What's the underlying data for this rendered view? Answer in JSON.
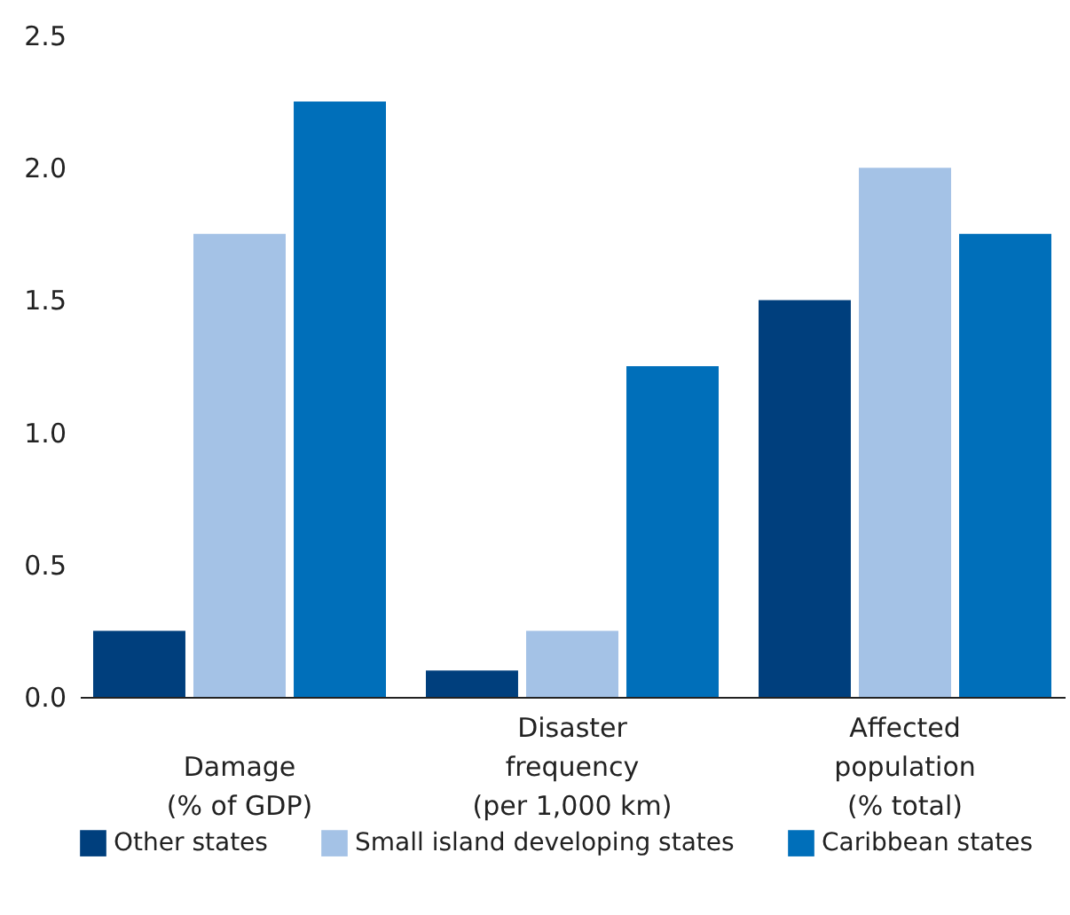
{
  "chart_data": {
    "type": "bar",
    "categories": [
      "Damage (% of GDP)",
      "Disaster frequency (per 1,000 km)",
      "Affected population (% total)"
    ],
    "series": [
      {
        "name": "Other states",
        "color": "#003f7d",
        "values": [
          0.25,
          0.1,
          1.5
        ]
      },
      {
        "name": "Small island developing states",
        "color": "#a4c2e6",
        "values": [
          1.75,
          0.25,
          2.0
        ]
      },
      {
        "name": "Caribbean states",
        "color": "#006fba",
        "values": [
          2.25,
          1.25,
          1.75
        ]
      }
    ],
    "ylim": [
      0,
      2.5
    ],
    "yticks": [
      {
        "value": 0,
        "label": "0.0"
      },
      0.5,
      {
        "value": 1,
        "label": "1.0"
      },
      1.5,
      {
        "value": 2,
        "label": "2.0"
      },
      2.5
    ],
    "grid": false,
    "legend": "bottom"
  }
}
